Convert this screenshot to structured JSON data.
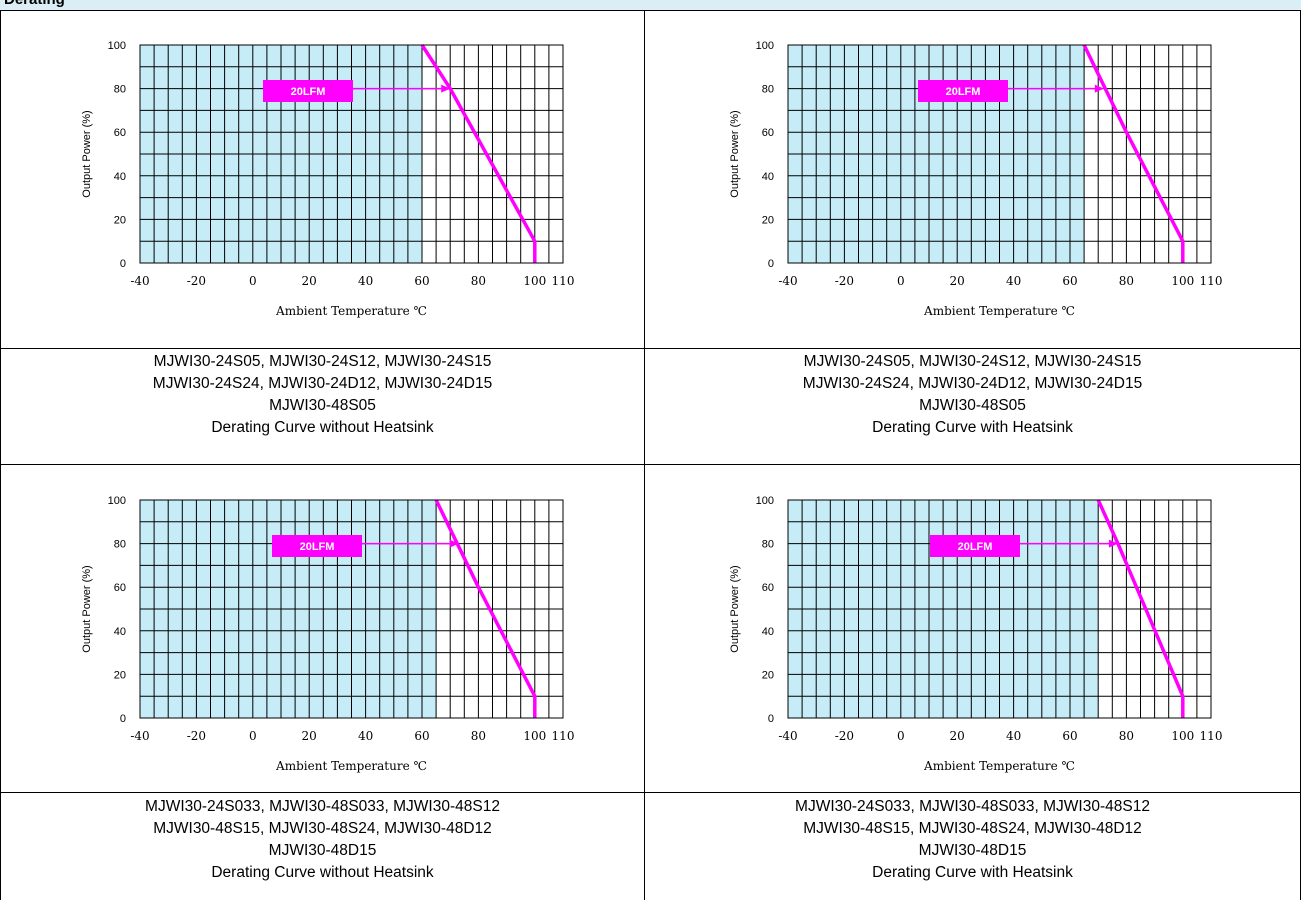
{
  "header": {
    "title": "Derating"
  },
  "colors": {
    "safe_area": "#c6ecf8",
    "curve": "#ff00ff",
    "grid": "#000000"
  },
  "chart_data": [
    {
      "type": "line",
      "xlabel": "Ambient Temperature ℃",
      "ylabel": "Output Power (%)",
      "xticks": [
        "-40",
        "-20",
        "0",
        "20",
        "40",
        "60",
        "80",
        "100",
        "110"
      ],
      "yticks": [
        "0",
        "20",
        "40",
        "60",
        "80",
        "100"
      ],
      "xlim": [
        -40,
        110
      ],
      "ylim": [
        0,
        100
      ],
      "grid": true,
      "safe_area_max_x": 60,
      "annotation": {
        "text": "20LFM",
        "arrow_to": [
          70,
          80
        ]
      },
      "series": [
        {
          "x": [
            60,
            70,
            100,
            100
          ],
          "y": [
            100,
            80,
            10,
            0
          ]
        }
      ]
    },
    {
      "type": "line",
      "xlabel": "Ambient Temperature ℃",
      "ylabel": "Output Power (%)",
      "xticks": [
        "-40",
        "-20",
        "0",
        "20",
        "40",
        "60",
        "80",
        "100",
        "110"
      ],
      "yticks": [
        "0",
        "20",
        "40",
        "60",
        "80",
        "100"
      ],
      "xlim": [
        -40,
        110
      ],
      "ylim": [
        0,
        100
      ],
      "grid": true,
      "safe_area_max_x": 65,
      "annotation": {
        "text": "20LFM",
        "arrow_to": [
          72,
          80
        ]
      },
      "series": [
        {
          "x": [
            65,
            80,
            100,
            100
          ],
          "y": [
            100,
            60,
            10,
            0
          ]
        }
      ]
    },
    {
      "type": "line",
      "xlabel": "Ambient Temperature ℃",
      "ylabel": "Output Power (%)",
      "xticks": [
        "-40",
        "-20",
        "0",
        "20",
        "40",
        "60",
        "80",
        "100",
        "110"
      ],
      "yticks": [
        "0",
        "20",
        "40",
        "60",
        "80",
        "100"
      ],
      "xlim": [
        -40,
        110
      ],
      "ylim": [
        0,
        100
      ],
      "grid": true,
      "safe_area_max_x": 65,
      "annotation": {
        "text": "20LFM",
        "arrow_to": [
          73,
          80
        ]
      },
      "series": [
        {
          "x": [
            65,
            80,
            100,
            100
          ],
          "y": [
            100,
            60,
            10,
            0
          ]
        }
      ]
    },
    {
      "type": "line",
      "xlabel": "Ambient Temperature ℃",
      "ylabel": "Output Power (%)",
      "xticks": [
        "-40",
        "-20",
        "0",
        "20",
        "40",
        "60",
        "80",
        "100",
        "110"
      ],
      "yticks": [
        "0",
        "20",
        "40",
        "60",
        "80",
        "100"
      ],
      "xlim": [
        -40,
        110
      ],
      "ylim": [
        0,
        100
      ],
      "grid": true,
      "safe_area_max_x": 70,
      "annotation": {
        "text": "20LFM",
        "arrow_to": [
          77,
          80
        ]
      },
      "series": [
        {
          "x": [
            70,
            77,
            100,
            100
          ],
          "y": [
            100,
            80,
            10,
            0
          ]
        }
      ]
    }
  ],
  "captions": [
    [
      "MJWI30-24S05, MJWI30-24S12, MJWI30-24S15",
      "MJWI30-24S24, MJWI30-24D12, MJWI30-24D15",
      "MJWI30-48S05",
      "Derating Curve without Heatsink"
    ],
    [
      "MJWI30-24S05, MJWI30-24S12, MJWI30-24S15",
      "MJWI30-24S24, MJWI30-24D12, MJWI30-24D15",
      "MJWI30-48S05",
      "Derating Curve with Heatsink"
    ],
    [
      "MJWI30-24S033, MJWI30-48S033, MJWI30-48S12",
      "MJWI30-48S15, MJWI30-48S24, MJWI30-48D12",
      "MJWI30-48D15",
      "Derating Curve without Heatsink"
    ],
    [
      "MJWI30-24S033, MJWI30-48S033, MJWI30-48S12",
      "MJWI30-48S15, MJWI30-48S24, MJWI30-48D12",
      "MJWI30-48D15",
      "Derating Curve with Heatsink"
    ]
  ]
}
